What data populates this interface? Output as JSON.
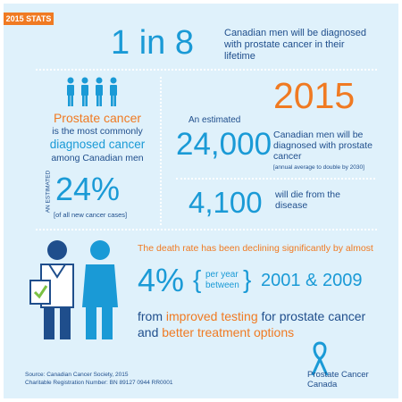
{
  "badge": "2015 STATS",
  "top": {
    "big": "1 in 8",
    "text": "Canadian men will be diagnosed with prostate cancer in their lifetime"
  },
  "left": {
    "line1": "Prostate cancer",
    "line2": "is the most commonly",
    "line3": "diagnosed cancer",
    "line4": "among Canadian men",
    "vertical": "AN ESTIMATED",
    "percent": "24%",
    "percent_note": "[of all new cancer cases]"
  },
  "right": {
    "intro": "An estimated",
    "year": "2015",
    "count": "24,000",
    "count_text": "Canadian men will be diagnosed with prostate cancer",
    "count_note": "[annual average to double by 2030]",
    "deaths": "4,100",
    "deaths_text": "will die from the disease"
  },
  "decline": {
    "headline": "The death rate has been declining significantly by almost",
    "percent": "4%",
    "per_year": "per year",
    "between": "between",
    "range": "2001 & 2009",
    "line1_pre": "from ",
    "line1_hl": "improved testing",
    "line1_post": " for prostate cancer",
    "line2_pre": "and ",
    "line2_hl": "better treatment options"
  },
  "footer": {
    "source": "Source: Canadian Cancer Society, 2015",
    "registration": "Charitable Registration Number: BN 89127 0944 RR0001",
    "logo_line1": "Prostate Cancer",
    "logo_line2": "Canada"
  },
  "colors": {
    "blue": "#1a9ad6",
    "dark": "#1f4e8c",
    "orange": "#f07a22",
    "background": "#dff1fb"
  }
}
